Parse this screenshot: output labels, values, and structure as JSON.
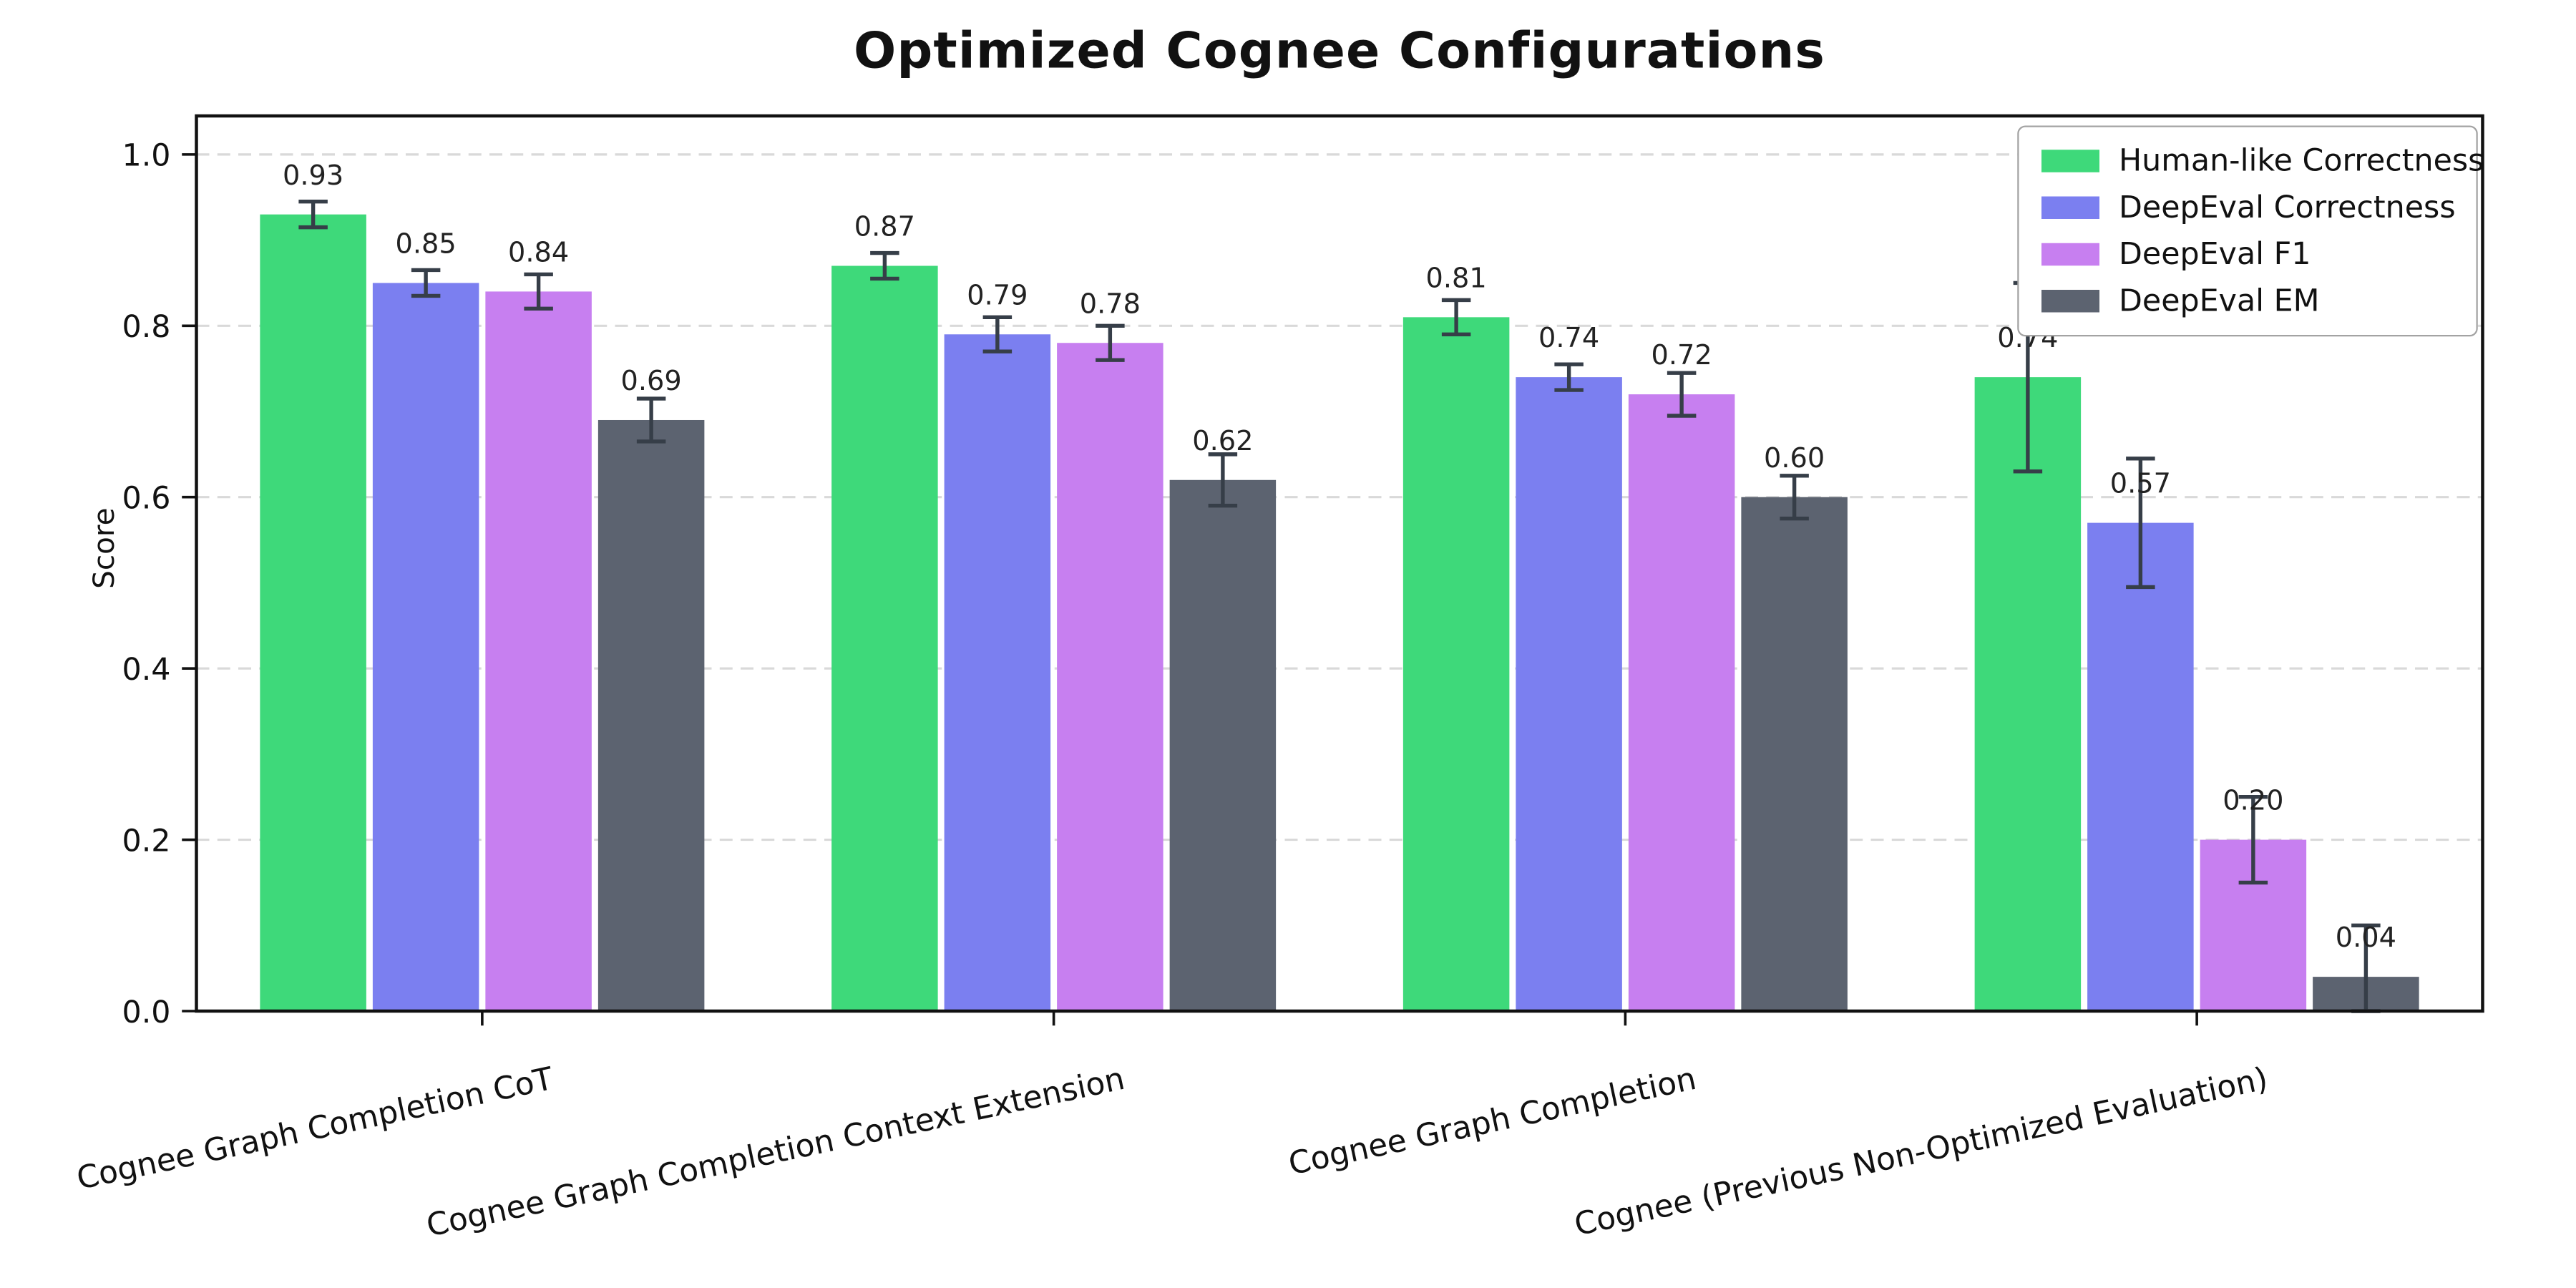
{
  "chart_data": {
    "type": "bar",
    "title": "Optimized Cognee Configurations",
    "ylabel": "Score",
    "ylim": [
      0,
      1.045
    ],
    "yticks": [
      0.0,
      0.2,
      0.4,
      0.6,
      0.8,
      1.0
    ],
    "grid": "horizontal-dashed",
    "legend_position": "upper right",
    "categories": [
      "Cognee Graph Completion CoT",
      "Cognee Graph Completion Context Extension",
      "Cognee Graph Completion",
      "Cognee (Previous Non-Optimized Evaluation)"
    ],
    "series": [
      {
        "name": "Human-like Correctness",
        "color": "#3ed97a",
        "values": [
          0.93,
          0.87,
          0.81,
          0.74
        ],
        "errors": [
          0.015,
          0.015,
          0.02,
          0.11
        ]
      },
      {
        "name": "DeepEval Correctness",
        "color": "#7b7ff0",
        "values": [
          0.85,
          0.79,
          0.74,
          0.57
        ],
        "errors": [
          0.015,
          0.02,
          0.015,
          0.075
        ]
      },
      {
        "name": "DeepEval F1",
        "color": "#c77ff0",
        "values": [
          0.84,
          0.78,
          0.72,
          0.2
        ],
        "errors": [
          0.02,
          0.02,
          0.025,
          0.05
        ]
      },
      {
        "name": "DeepEval EM",
        "color": "#5c6370",
        "values": [
          0.69,
          0.62,
          0.6,
          0.04
        ],
        "errors": [
          0.025,
          0.03,
          0.025,
          0.06
        ]
      }
    ],
    "error_bar_color": "#363e48",
    "value_label_color": "#222222"
  }
}
